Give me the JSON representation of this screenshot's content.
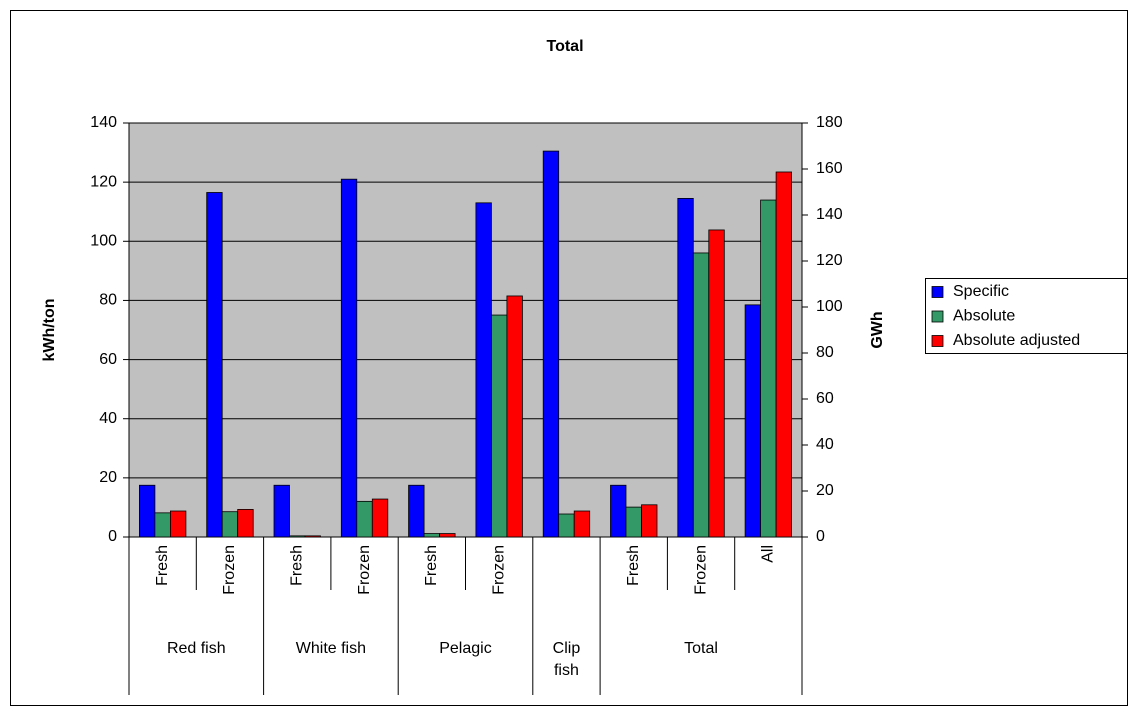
{
  "chart_data": {
    "type": "bar",
    "title": "Total",
    "groups": [
      {
        "name": "Red fish",
        "categories": [
          "Fresh",
          "Frozen"
        ]
      },
      {
        "name": "White fish",
        "categories": [
          "Fresh",
          "Frozen"
        ]
      },
      {
        "name": "Pelagic",
        "categories": [
          "Fresh",
          "Frozen"
        ]
      },
      {
        "name": "Clip fish",
        "categories": [
          null
        ]
      },
      {
        "name": "Total",
        "categories": [
          "Fresh",
          "Frozen",
          "All"
        ]
      }
    ],
    "y_label": "kWh/ton",
    "y2_label": "GWh",
    "ylim": [
      0,
      140
    ],
    "yticks": [
      0,
      20,
      40,
      60,
      80,
      100,
      120,
      140
    ],
    "y2lim": [
      0,
      180
    ],
    "y2ticks": [
      0,
      20,
      40,
      60,
      80,
      100,
      120,
      140,
      160,
      180
    ],
    "grid": true,
    "legend": "right",
    "series": [
      {
        "name": "Specific",
        "color": "#0000ff",
        "axis": "y",
        "values": [
          17.5,
          116.5,
          17.5,
          121,
          17.5,
          113,
          130.5,
          17.5,
          114.5,
          78.5
        ]
      },
      {
        "name": "Absolute",
        "color": "#339966",
        "axis": "y2",
        "values": [
          10.5,
          11,
          0.5,
          15.5,
          1.5,
          96.5,
          10,
          13,
          123.5,
          146.5
        ]
      },
      {
        "name": "Absolute adjusted",
        "color": "#ff0000",
        "axis": "y2",
        "values": [
          11.3,
          12,
          0.5,
          16.5,
          1.5,
          104.8,
          11.3,
          14,
          133.5,
          158.7
        ]
      }
    ]
  }
}
